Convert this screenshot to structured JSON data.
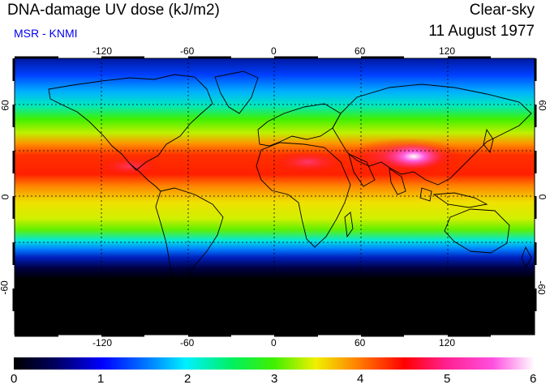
{
  "header": {
    "title": "DNA-damage UV dose (kJ/m2)",
    "source": "MSR - KNMI",
    "sky_condition": "Clear-sky",
    "date": "11 August 1977"
  },
  "map": {
    "projection": "equirectangular",
    "lon_range": [
      -180,
      180
    ],
    "lat_range": [
      -90,
      90
    ],
    "longitude_ticks": [
      "-120",
      "-60",
      "0",
      "60",
      "120"
    ],
    "latitude_ticks_left": [
      "60",
      "0",
      "-60"
    ],
    "latitude_ticks_right": [
      "60",
      "0",
      "-60"
    ],
    "gridlines": "dotted",
    "colors": {
      "low": "#000000",
      "dark_blue": "#0000a0",
      "blue": "#0040ff",
      "cyan": "#00e0ff",
      "green": "#00f000",
      "yellow": "#f0f000",
      "orange": "#ff8000",
      "red": "#ff0000",
      "magenta": "#ff40c0",
      "high": "#ffffff"
    }
  },
  "colorbar": {
    "labels": [
      "0",
      "1",
      "2",
      "3",
      "4",
      "5",
      "6"
    ],
    "min": 0,
    "max": 6
  }
}
